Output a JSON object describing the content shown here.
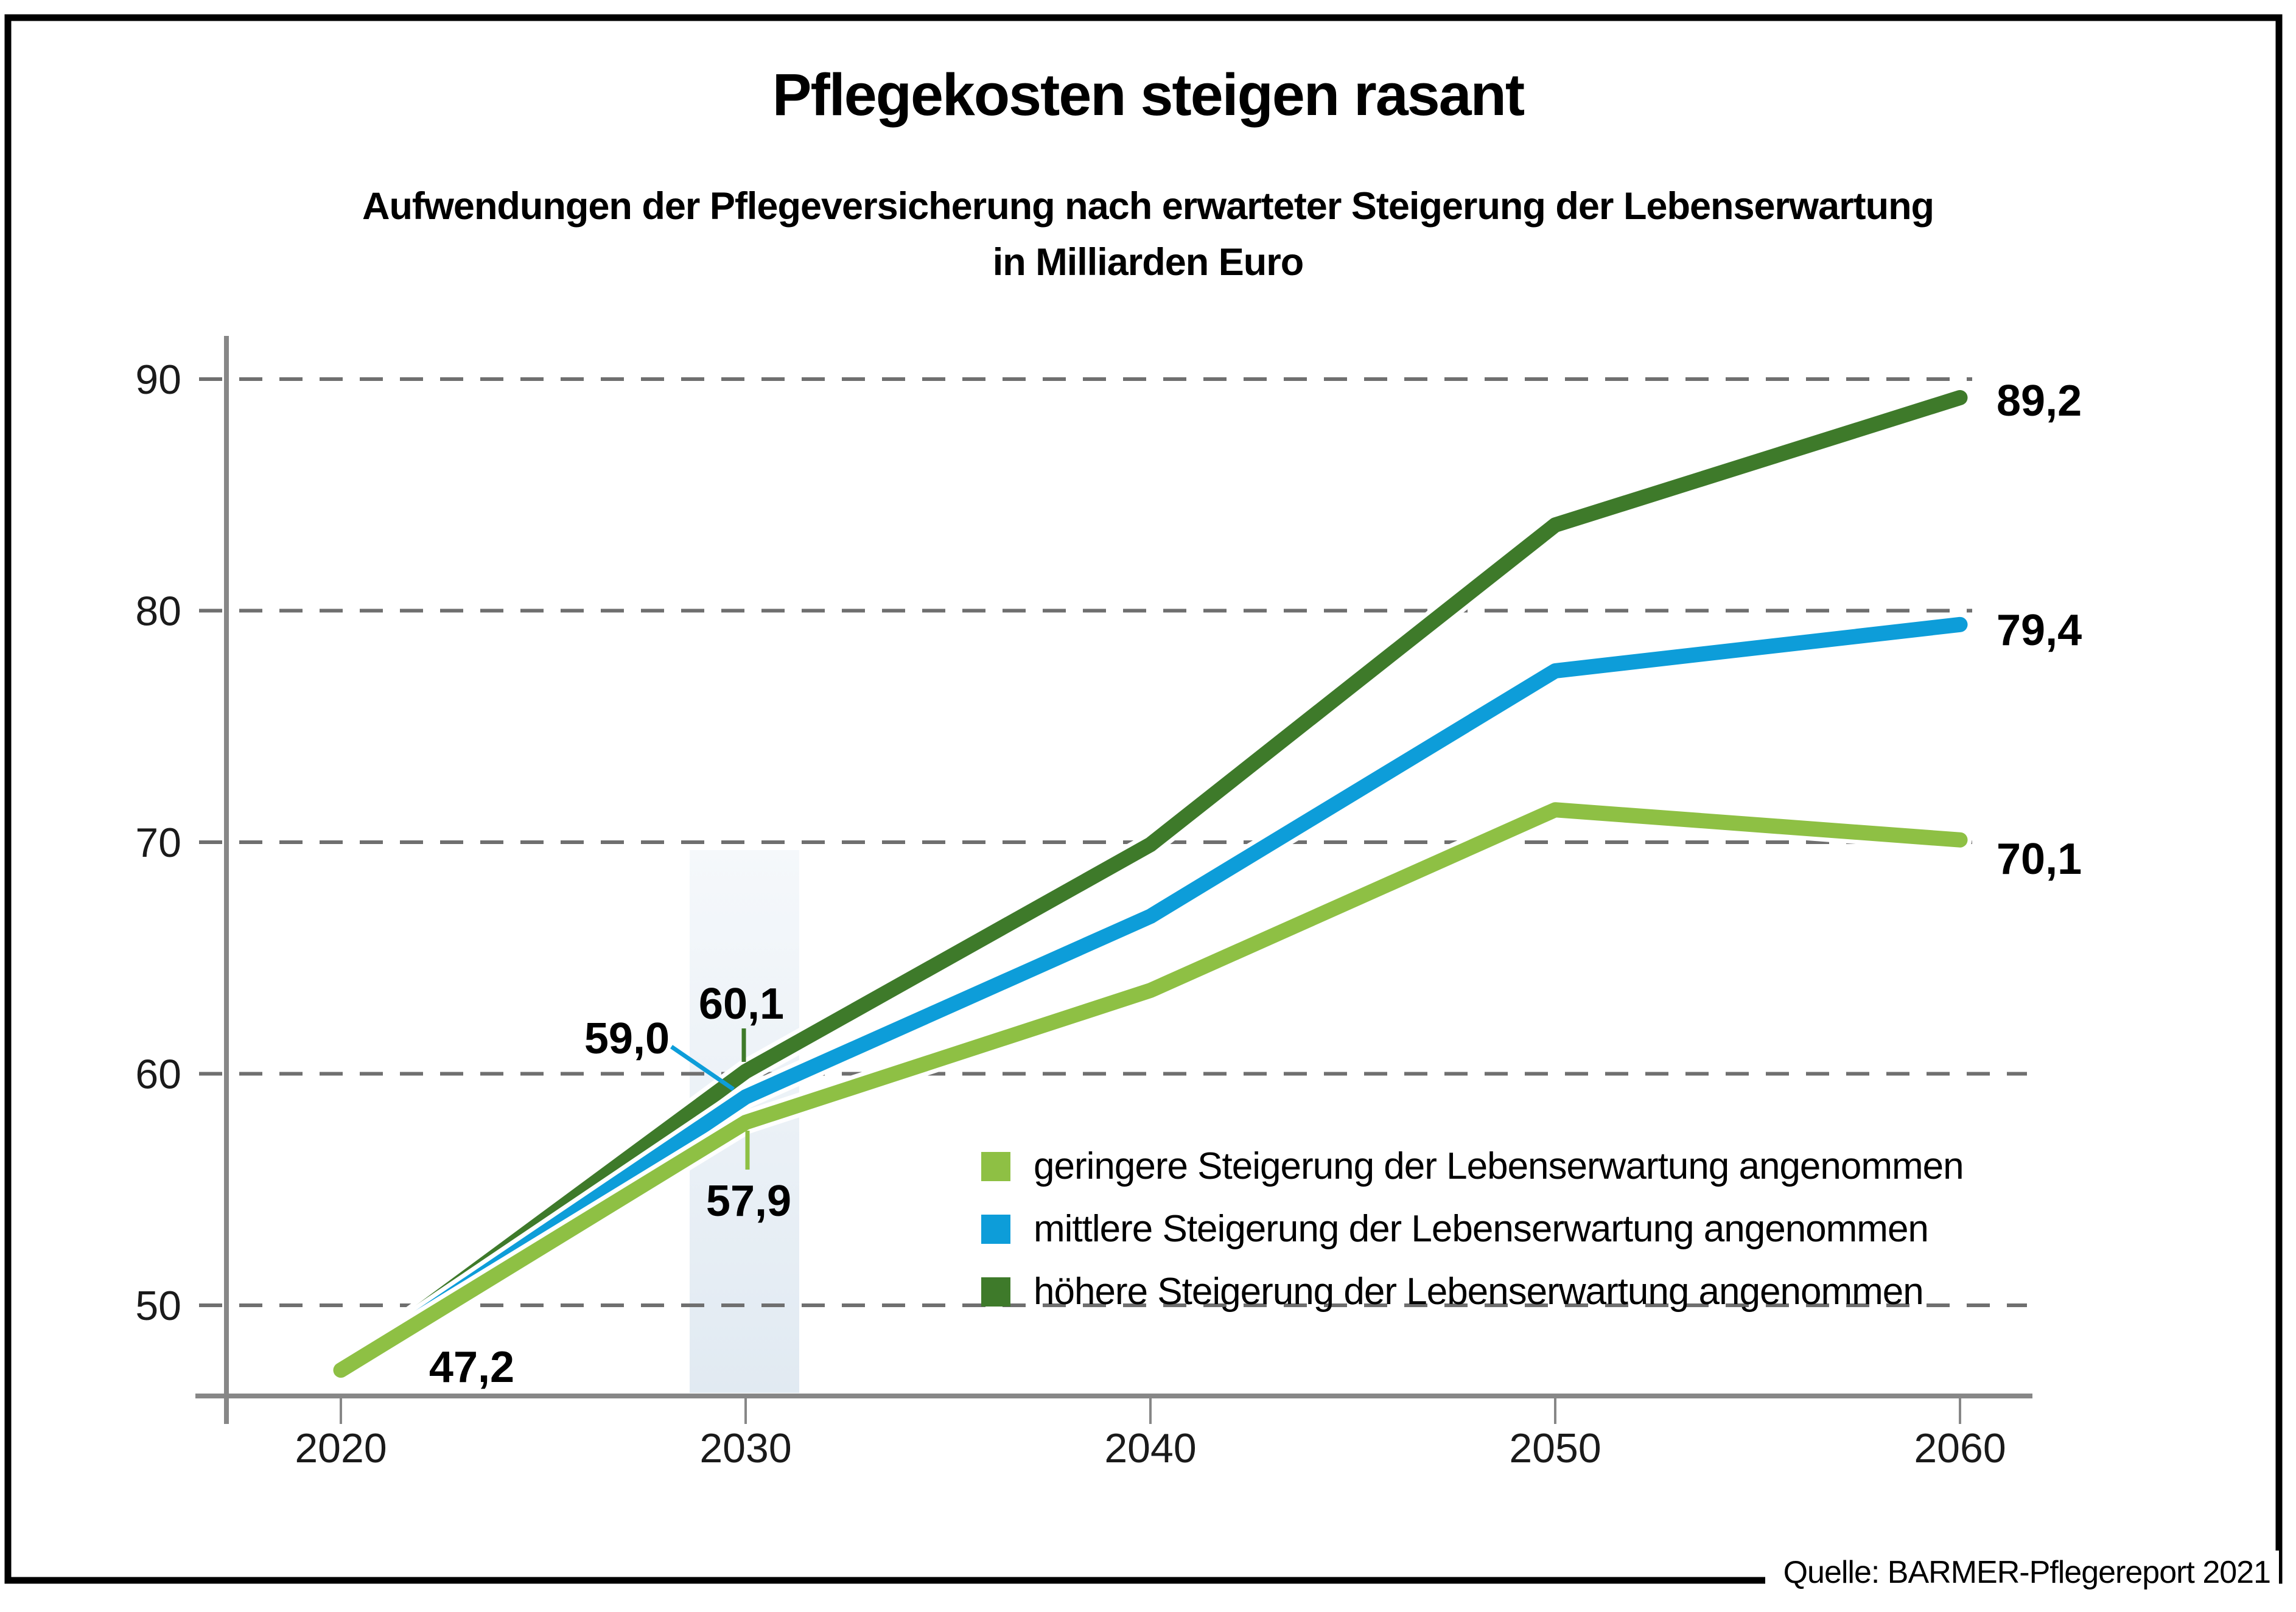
{
  "header": {
    "title": "Pflegekosten steigen rasant",
    "subtitle_line1": "Aufwendungen der Pflegeversicherung nach erwarteter Steigerung der Lebenserwartung",
    "subtitle_line2": "in Milliarden Euro"
  },
  "source": "Quelle: BARMER-Pflegereport 2021",
  "colors": {
    "grid": "#6f6f6f",
    "axis": "#878787",
    "text": "#000000",
    "band_top": "#f5f8fb",
    "band_bottom": "#e1eaf2",
    "frame": "#000000"
  },
  "chart_data": {
    "type": "line",
    "title": "Pflegekosten steigen rasant",
    "subtitle": "Aufwendungen der Pflegeversicherung nach erwarteter Steigerung der Lebenserwartung in Milliarden Euro",
    "x": [
      2020,
      2030,
      2040,
      2050,
      2060
    ],
    "xticks": [
      "2020",
      "2030",
      "2040",
      "2050",
      "2060"
    ],
    "yticks": [
      50,
      60,
      70,
      80,
      90
    ],
    "ylim": [
      46.1,
      92
    ],
    "grid": "horizontal-dashed",
    "legend_position": "inside-lower-right",
    "highlight_band_year": 2030,
    "series": [
      {
        "name": "geringere Steigerung der Lebenserwartung angenommen",
        "color": "#8ec044",
        "values": [
          47.2,
          57.9,
          63.6,
          71.4,
          70.1
        ]
      },
      {
        "name": "mittlere Steigerung der Lebenserwartung angenommen",
        "color": "#0d9dd9",
        "values": [
          47.2,
          59.0,
          66.8,
          77.4,
          79.4
        ]
      },
      {
        "name": "höhere Steigerung der Lebenserwartung angenommen",
        "color": "#3e7a2a",
        "values": [
          47.2,
          60.1,
          69.9,
          83.7,
          89.2
        ]
      }
    ],
    "point_labels": [
      {
        "text": "47,2",
        "series": "shared",
        "year": 2020,
        "value": 47.2
      },
      {
        "text": "57,9",
        "series": 0,
        "year": 2030,
        "value": 57.9
      },
      {
        "text": "59,0",
        "series": 1,
        "year": 2030,
        "value": 59.0
      },
      {
        "text": "60,1",
        "series": 2,
        "year": 2030,
        "value": 60.1
      },
      {
        "text": "70,1",
        "series": 0,
        "year": 2060,
        "value": 70.1
      },
      {
        "text": "79,4",
        "series": 1,
        "year": 2060,
        "value": 79.4
      },
      {
        "text": "89,2",
        "series": 2,
        "year": 2060,
        "value": 89.2
      }
    ]
  }
}
